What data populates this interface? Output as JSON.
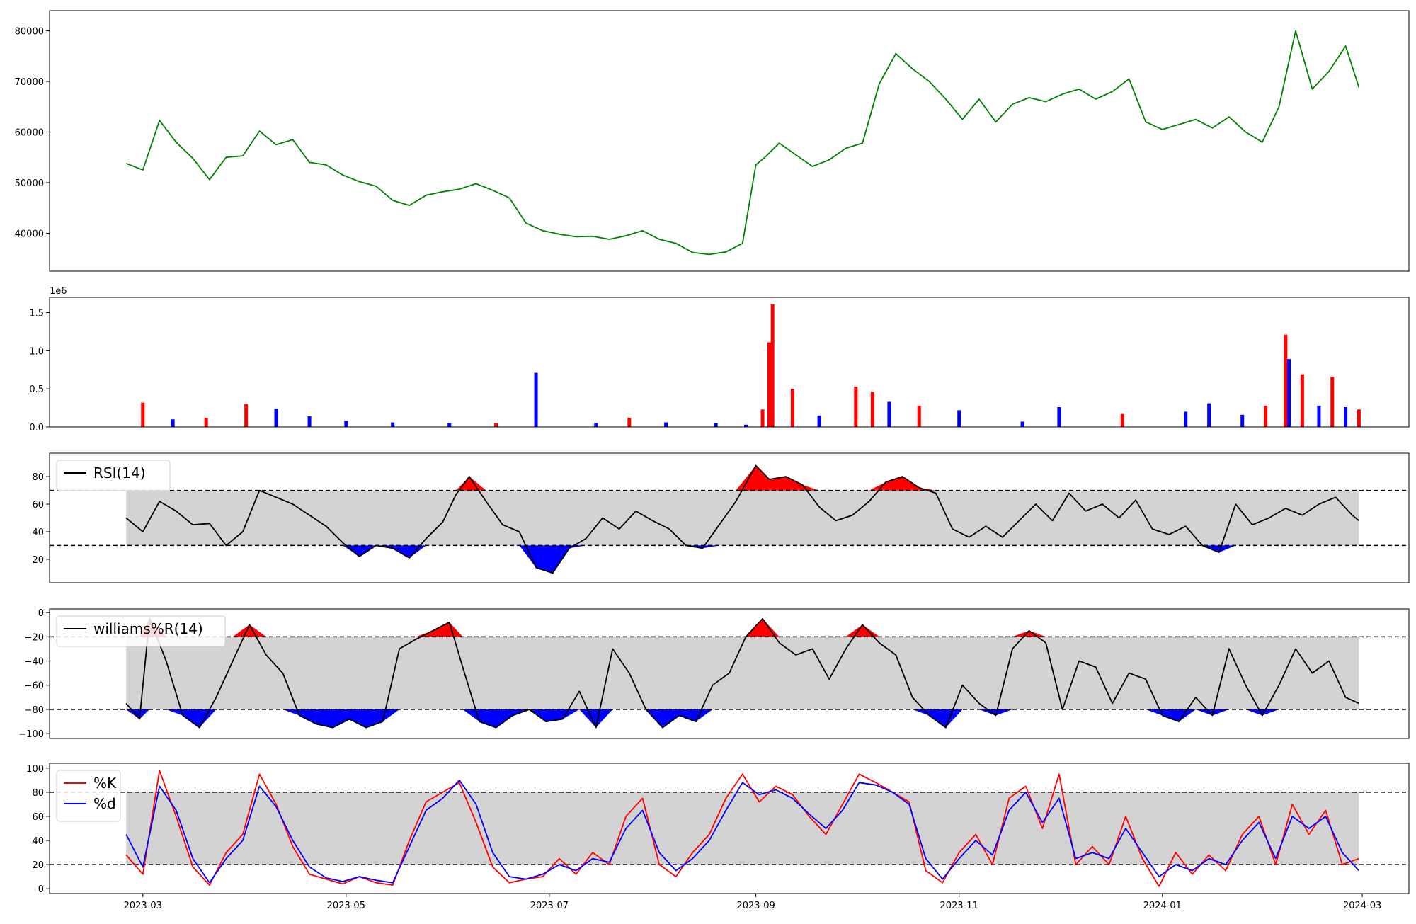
{
  "chart_data": [
    {
      "type": "line",
      "panel": "price",
      "x_range": [
        "2023-02-01",
        "2024-03-15"
      ],
      "ylim": [
        32500,
        84000
      ],
      "yticks": [
        40000,
        50000,
        60000,
        70000,
        80000
      ],
      "grid": false,
      "colors": {
        "line": "#008000"
      },
      "x": [
        "2023-02-24",
        "2023-03-01",
        "2023-03-06",
        "2023-03-11",
        "2023-03-16",
        "2023-03-21",
        "2023-03-26",
        "2023-03-31",
        "2023-04-05",
        "2023-04-10",
        "2023-04-15",
        "2023-04-20",
        "2023-04-25",
        "2023-04-30",
        "2023-05-05",
        "2023-05-10",
        "2023-05-15",
        "2023-05-20",
        "2023-05-25",
        "2023-05-30",
        "2023-06-04",
        "2023-06-09",
        "2023-06-14",
        "2023-06-19",
        "2023-06-24",
        "2023-06-29",
        "2023-07-04",
        "2023-07-09",
        "2023-07-14",
        "2023-07-19",
        "2023-07-24",
        "2023-07-29",
        "2023-08-03",
        "2023-08-08",
        "2023-08-13",
        "2023-08-18",
        "2023-08-23",
        "2023-08-28",
        "2023-09-01",
        "2023-09-04",
        "2023-09-08",
        "2023-09-13",
        "2023-09-18",
        "2023-09-23",
        "2023-09-28",
        "2023-10-03",
        "2023-10-08",
        "2023-10-13",
        "2023-10-18",
        "2023-10-23",
        "2023-10-28",
        "2023-11-02",
        "2023-11-07",
        "2023-11-12",
        "2023-11-17",
        "2023-11-22",
        "2023-11-27",
        "2023-12-02",
        "2023-12-07",
        "2023-12-12",
        "2023-12-17",
        "2023-12-22",
        "2023-12-27",
        "2024-01-01",
        "2024-01-06",
        "2024-01-11",
        "2024-01-16",
        "2024-01-21",
        "2024-01-26",
        "2024-01-31",
        "2024-02-05",
        "2024-02-10",
        "2024-02-15",
        "2024-02-20",
        "2024-02-25",
        "2024-02-29"
      ],
      "y": [
        53800,
        52500,
        62300,
        58000,
        54800,
        50600,
        55000,
        55300,
        60200,
        57500,
        58500,
        54000,
        53500,
        51500,
        50200,
        49300,
        46500,
        45500,
        47500,
        48200,
        48700,
        49800,
        48500,
        47000,
        42000,
        40500,
        39800,
        39300,
        39400,
        38800,
        39500,
        40500,
        38800,
        38000,
        36200,
        35800,
        36300,
        38000,
        53500,
        55200,
        57800,
        55500,
        53200,
        54500,
        56800,
        57800,
        69500,
        75500,
        72500,
        70000,
        66500,
        62500,
        66500,
        62000,
        65500,
        66800,
        66000,
        67500,
        68500,
        66500,
        68000,
        70500,
        62000,
        60500,
        61500,
        62500,
        60800,
        63000,
        60000,
        58000,
        65000,
        80000,
        68500,
        72000,
        77000,
        68800
      ]
    },
    {
      "type": "bar",
      "panel": "volume",
      "offset_label": "1e6",
      "ylim": [
        0,
        1.7
      ],
      "yticks": [
        0.0,
        0.5,
        1.0,
        1.5
      ],
      "colors": {
        "up": "#ff0000",
        "down": "#0000ff"
      },
      "x": [
        "2023-03-01",
        "2023-03-10",
        "2023-03-20",
        "2023-04-01",
        "2023-04-10",
        "2023-04-20",
        "2023-05-01",
        "2023-05-15",
        "2023-06-01",
        "2023-06-15",
        "2023-06-27",
        "2023-07-15",
        "2023-07-25",
        "2023-08-05",
        "2023-08-20",
        "2023-08-29",
        "2023-09-03",
        "2023-09-05",
        "2023-09-06",
        "2023-09-12",
        "2023-09-20",
        "2023-10-01",
        "2023-10-06",
        "2023-10-11",
        "2023-10-20",
        "2023-11-01",
        "2023-11-20",
        "2023-12-01",
        "2023-12-20",
        "2024-01-08",
        "2024-01-15",
        "2024-01-25",
        "2024-02-01",
        "2024-02-07",
        "2024-02-08",
        "2024-02-12",
        "2024-02-17",
        "2024-02-21",
        "2024-02-25",
        "2024-02-29"
      ],
      "values": [
        0.32,
        0.1,
        0.12,
        0.3,
        0.24,
        0.14,
        0.08,
        0.06,
        0.05,
        0.05,
        0.71,
        0.05,
        0.12,
        0.06,
        0.05,
        0.03,
        0.23,
        1.11,
        1.61,
        0.5,
        0.15,
        0.53,
        0.46,
        0.33,
        0.28,
        0.22,
        0.07,
        0.26,
        0.17,
        0.2,
        0.31,
        0.16,
        0.28,
        1.21,
        0.89,
        0.69,
        0.28,
        0.66,
        0.26,
        0.23
      ],
      "direction": [
        "up",
        "down",
        "up",
        "up",
        "down",
        "down",
        "down",
        "down",
        "down",
        "up",
        "down",
        "down",
        "up",
        "down",
        "down",
        "down",
        "up",
        "up",
        "up",
        "up",
        "down",
        "up",
        "up",
        "down",
        "up",
        "down",
        "down",
        "down",
        "up",
        "down",
        "down",
        "down",
        "up",
        "up",
        "down",
        "up",
        "down",
        "up",
        "down",
        "up"
      ]
    },
    {
      "type": "area",
      "panel": "rsi",
      "legend": [
        "RSI(14)"
      ],
      "legend_position": "top-left",
      "ylim": [
        3,
        97
      ],
      "yticks": [
        20,
        40,
        60,
        80
      ],
      "band": [
        30,
        70
      ],
      "colors": {
        "line": "#000000",
        "band": "#d3d3d3",
        "overbought": "#ff0000",
        "oversold": "#0000ff"
      },
      "x": [
        "2023-02-24",
        "2023-03-01",
        "2023-03-06",
        "2023-03-11",
        "2023-03-16",
        "2023-03-21",
        "2023-03-26",
        "2023-03-31",
        "2023-04-05",
        "2023-04-10",
        "2023-04-15",
        "2023-04-20",
        "2023-04-25",
        "2023-04-30",
        "2023-05-05",
        "2023-05-10",
        "2023-05-15",
        "2023-05-20",
        "2023-05-25",
        "2023-05-30",
        "2023-06-03",
        "2023-06-07",
        "2023-06-12",
        "2023-06-17",
        "2023-06-22",
        "2023-06-27",
        "2023-07-02",
        "2023-07-07",
        "2023-07-12",
        "2023-07-17",
        "2023-07-22",
        "2023-07-27",
        "2023-08-01",
        "2023-08-06",
        "2023-08-11",
        "2023-08-16",
        "2023-08-21",
        "2023-08-26",
        "2023-09-01",
        "2023-09-05",
        "2023-09-10",
        "2023-09-15",
        "2023-09-20",
        "2023-09-25",
        "2023-09-30",
        "2023-10-05",
        "2023-10-10",
        "2023-10-15",
        "2023-10-20",
        "2023-10-25",
        "2023-10-30",
        "2023-11-04",
        "2023-11-09",
        "2023-11-14",
        "2023-11-19",
        "2023-11-24",
        "2023-11-29",
        "2023-12-04",
        "2023-12-09",
        "2023-12-14",
        "2023-12-19",
        "2023-12-24",
        "2023-12-29",
        "2024-01-03",
        "2024-01-08",
        "2024-01-13",
        "2024-01-18",
        "2024-01-23",
        "2024-01-28",
        "2024-02-02",
        "2024-02-07",
        "2024-02-12",
        "2024-02-17",
        "2024-02-22",
        "2024-02-27",
        "2024-02-29"
      ],
      "y": [
        50,
        40,
        62,
        55,
        45,
        46,
        30,
        40,
        70,
        65,
        60,
        52,
        44,
        32,
        22,
        30,
        28,
        21,
        35,
        47,
        67,
        80,
        62,
        45,
        40,
        14,
        10,
        28,
        35,
        50,
        42,
        55,
        48,
        42,
        30,
        28,
        45,
        62,
        88,
        78,
        80,
        74,
        58,
        48,
        52,
        62,
        76,
        80,
        72,
        68,
        42,
        36,
        44,
        36,
        48,
        60,
        48,
        68,
        55,
        60,
        50,
        63,
        42,
        38,
        44,
        30,
        25,
        60,
        45,
        50,
        57,
        52,
        60,
        65,
        52,
        48
      ]
    },
    {
      "type": "area",
      "panel": "williams",
      "legend": [
        "williams%R(14)"
      ],
      "legend_position": "top-left",
      "ylim": [
        -104,
        3
      ],
      "yticks": [
        -100,
        -80,
        -60,
        -40,
        -20,
        0
      ],
      "band": [
        -80,
        -20
      ],
      "colors": {
        "line": "#000000",
        "band": "#d3d3d3",
        "overbought": "#ff0000",
        "oversold": "#0000ff"
      },
      "x": [
        "2023-02-24",
        "2023-02-28",
        "2023-03-03",
        "2023-03-08",
        "2023-03-13",
        "2023-03-18",
        "2023-03-23",
        "2023-03-28",
        "2023-04-02",
        "2023-04-07",
        "2023-04-12",
        "2023-04-17",
        "2023-04-22",
        "2023-04-27",
        "2023-05-02",
        "2023-05-07",
        "2023-05-12",
        "2023-05-17",
        "2023-05-22",
        "2023-05-27",
        "2023-06-01",
        "2023-06-05",
        "2023-06-10",
        "2023-06-15",
        "2023-06-20",
        "2023-06-25",
        "2023-06-30",
        "2023-07-05",
        "2023-07-10",
        "2023-07-15",
        "2023-07-20",
        "2023-07-25",
        "2023-07-30",
        "2023-08-04",
        "2023-08-09",
        "2023-08-14",
        "2023-08-19",
        "2023-08-24",
        "2023-08-29",
        "2023-09-03",
        "2023-09-08",
        "2023-09-13",
        "2023-09-18",
        "2023-09-23",
        "2023-09-28",
        "2023-10-03",
        "2023-10-08",
        "2023-10-13",
        "2023-10-18",
        "2023-10-23",
        "2023-10-28",
        "2023-11-02",
        "2023-11-07",
        "2023-11-12",
        "2023-11-17",
        "2023-11-22",
        "2023-11-27",
        "2023-12-02",
        "2023-12-07",
        "2023-12-12",
        "2023-12-17",
        "2023-12-22",
        "2023-12-27",
        "2024-01-01",
        "2024-01-06",
        "2024-01-11",
        "2024-01-16",
        "2024-01-21",
        "2024-01-26",
        "2024-01-31",
        "2024-02-05",
        "2024-02-10",
        "2024-02-15",
        "2024-02-20",
        "2024-02-25",
        "2024-02-29"
      ],
      "y": [
        -75,
        -88,
        -5,
        -40,
        -85,
        -95,
        -70,
        -40,
        -10,
        -35,
        -50,
        -85,
        -92,
        -95,
        -88,
        -95,
        -90,
        -30,
        -22,
        -15,
        -8,
        -45,
        -90,
        -95,
        -85,
        -80,
        -90,
        -88,
        -65,
        -95,
        -30,
        -50,
        -80,
        -95,
        -85,
        -90,
        -60,
        -50,
        -20,
        -5,
        -25,
        -35,
        -30,
        -55,
        -30,
        -10,
        -25,
        -35,
        -70,
        -85,
        -95,
        -60,
        -75,
        -85,
        -30,
        -15,
        -25,
        -80,
        -40,
        -45,
        -75,
        -50,
        -55,
        -85,
        -90,
        -70,
        -85,
        -30,
        -60,
        -85,
        -60,
        -30,
        -50,
        -40,
        -70,
        -75
      ]
    },
    {
      "type": "line",
      "panel": "stochastic",
      "legend": [
        "%K",
        "%d"
      ],
      "legend_position": "top-left",
      "ylim": [
        -4,
        104
      ],
      "yticks": [
        0,
        20,
        40,
        60,
        80,
        100
      ],
      "band": [
        20,
        80
      ],
      "colors": {
        "band": "#d3d3d3",
        "%K": "#ff0000",
        "%d": "#0000ff"
      },
      "x": [
        "2023-02-24",
        "2023-03-01",
        "2023-03-06",
        "2023-03-11",
        "2023-03-16",
        "2023-03-21",
        "2023-03-26",
        "2023-03-31",
        "2023-04-05",
        "2023-04-10",
        "2023-04-15",
        "2023-04-20",
        "2023-04-25",
        "2023-04-30",
        "2023-05-05",
        "2023-05-10",
        "2023-05-15",
        "2023-05-20",
        "2023-05-25",
        "2023-05-30",
        "2023-06-04",
        "2023-06-09",
        "2023-06-14",
        "2023-06-19",
        "2023-06-24",
        "2023-06-29",
        "2023-07-04",
        "2023-07-09",
        "2023-07-14",
        "2023-07-19",
        "2023-07-24",
        "2023-07-29",
        "2023-08-03",
        "2023-08-08",
        "2023-08-13",
        "2023-08-18",
        "2023-08-23",
        "2023-08-28",
        "2023-09-02",
        "2023-09-07",
        "2023-09-12",
        "2023-09-17",
        "2023-09-22",
        "2023-09-27",
        "2023-10-02",
        "2023-10-07",
        "2023-10-12",
        "2023-10-17",
        "2023-10-22",
        "2023-10-27",
        "2023-11-01",
        "2023-11-06",
        "2023-11-11",
        "2023-11-16",
        "2023-11-21",
        "2023-11-26",
        "2023-12-01",
        "2023-12-06",
        "2023-12-11",
        "2023-12-16",
        "2023-12-21",
        "2023-12-26",
        "2023-12-31",
        "2024-01-05",
        "2024-01-10",
        "2024-01-15",
        "2024-01-20",
        "2024-01-25",
        "2024-01-30",
        "2024-02-04",
        "2024-02-09",
        "2024-02-14",
        "2024-02-19",
        "2024-02-24",
        "2024-02-29"
      ],
      "series": [
        {
          "name": "%K",
          "values": [
            28,
            12,
            98,
            60,
            18,
            3,
            30,
            45,
            95,
            70,
            35,
            12,
            8,
            4,
            10,
            5,
            3,
            40,
            72,
            80,
            88,
            55,
            18,
            5,
            8,
            10,
            25,
            12,
            30,
            20,
            60,
            75,
            20,
            10,
            30,
            45,
            75,
            95,
            72,
            85,
            78,
            60,
            45,
            70,
            95,
            88,
            80,
            72,
            15,
            5,
            30,
            45,
            20,
            75,
            85,
            50,
            95,
            20,
            35,
            20,
            60,
            25,
            2,
            30,
            12,
            28,
            15,
            45,
            60,
            20,
            70,
            45,
            65,
            20,
            25
          ]
        },
        {
          "name": "%d",
          "values": [
            45,
            18,
            85,
            65,
            25,
            5,
            25,
            40,
            85,
            68,
            40,
            18,
            9,
            6,
            10,
            7,
            5,
            35,
            65,
            75,
            90,
            70,
            30,
            10,
            8,
            12,
            20,
            15,
            25,
            22,
            50,
            65,
            30,
            15,
            25,
            40,
            65,
            88,
            78,
            82,
            75,
            62,
            50,
            65,
            88,
            86,
            80,
            70,
            25,
            8,
            25,
            40,
            28,
            65,
            80,
            55,
            75,
            25,
            30,
            25,
            50,
            30,
            10,
            20,
            15,
            25,
            20,
            40,
            55,
            25,
            60,
            50,
            60,
            30,
            15
          ]
        }
      ]
    }
  ],
  "x_axis": {
    "ticks": [
      "2023-03",
      "2023-05",
      "2023-07",
      "2023-09",
      "2023-11",
      "2024-01",
      "2024-03"
    ]
  }
}
